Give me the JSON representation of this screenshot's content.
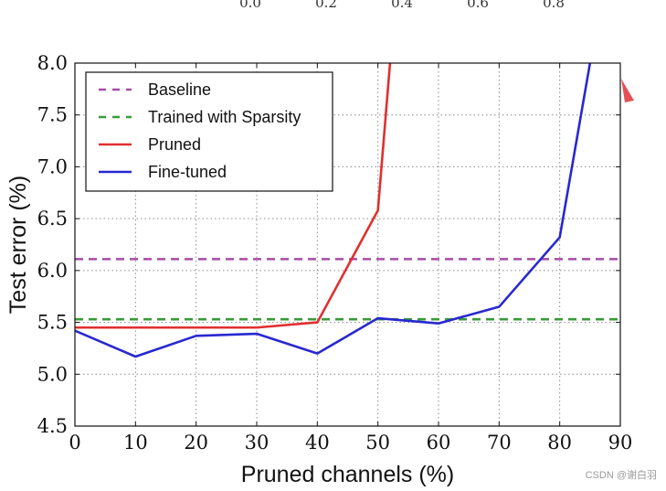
{
  "watermark": "CSDN @谢白羽",
  "chart_data": {
    "type": "line",
    "xlabel": "Pruned channels (%)",
    "ylabel": "Test error (%)",
    "xlim": [
      0,
      90
    ],
    "ylim": [
      4.5,
      8.0
    ],
    "xticks": [
      0,
      10,
      20,
      30,
      40,
      50,
      60,
      70,
      80,
      90
    ],
    "yticks": [
      4.5,
      5.0,
      5.5,
      6.0,
      6.5,
      7.0,
      7.5,
      8.0
    ],
    "ytick_labels": [
      "4.5",
      "5.0",
      "5.5",
      "6.0",
      "6.5",
      "7.0",
      "7.5",
      "8.0"
    ],
    "top_partial_ticks": [
      "0.0",
      "0.2",
      "0.4",
      "0.6",
      "0.8"
    ],
    "grid": true,
    "legend_position": "top-left",
    "series": [
      {
        "name": "Baseline",
        "style": "dashed",
        "color": "#a64ca6",
        "x": [
          0,
          90
        ],
        "y": [
          6.11,
          6.11
        ]
      },
      {
        "name": "Trained with Sparsity",
        "style": "dashed",
        "color": "#3a9a3a",
        "x": [
          0,
          90
        ],
        "y": [
          5.53,
          5.53
        ]
      },
      {
        "name": "Pruned",
        "style": "solid",
        "color": "#e03030",
        "x": [
          0,
          10,
          20,
          30,
          40,
          50,
          52
        ],
        "y": [
          5.45,
          5.45,
          5.45,
          5.45,
          5.5,
          6.58,
          8.0
        ]
      },
      {
        "name": "Fine-tuned",
        "style": "solid",
        "color": "#2828d0",
        "x": [
          0,
          10,
          20,
          30,
          40,
          50,
          60,
          70,
          80,
          85
        ],
        "y": [
          5.42,
          5.17,
          5.37,
          5.39,
          5.2,
          5.54,
          5.49,
          5.65,
          6.32,
          8.0
        ]
      }
    ]
  }
}
